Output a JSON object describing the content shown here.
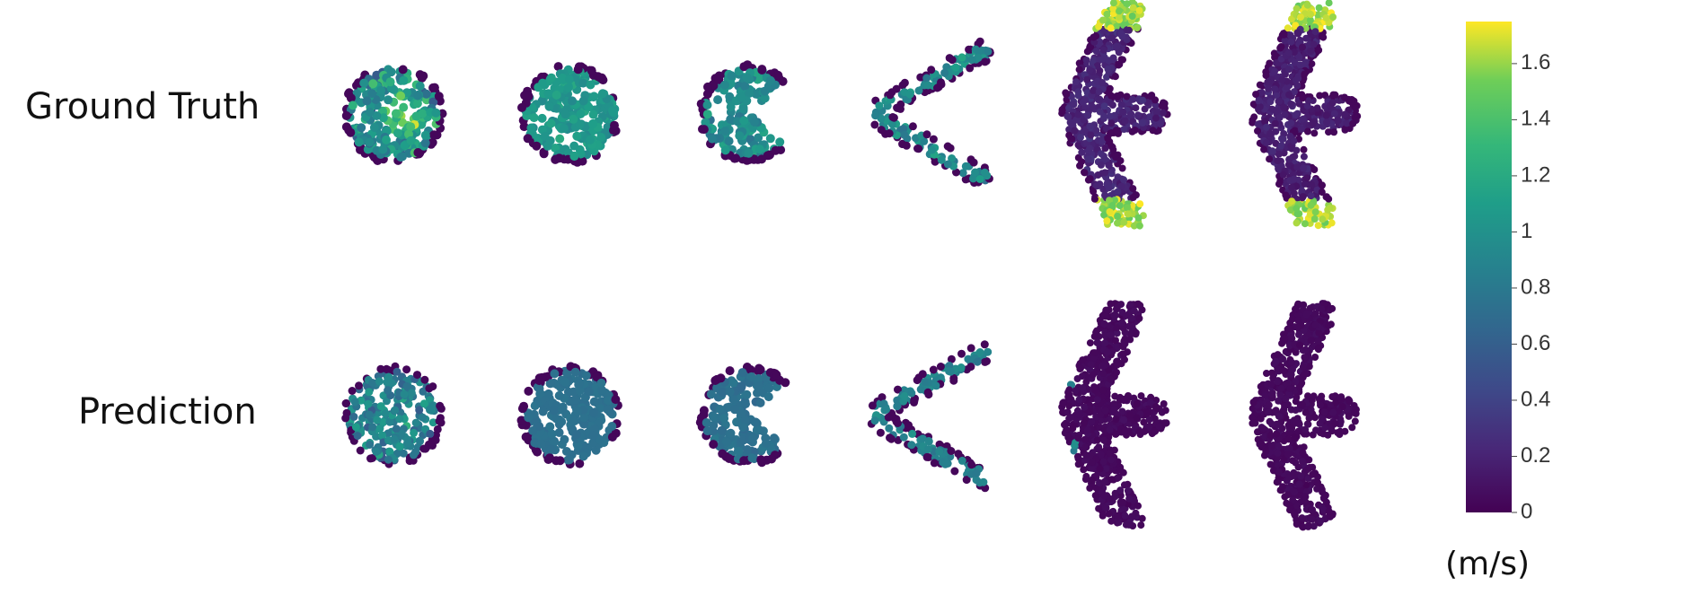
{
  "rows": [
    {
      "label": "Ground Truth"
    },
    {
      "label": "Prediction"
    }
  ],
  "colorbar": {
    "range": [
      0,
      1.75
    ],
    "ticks": [
      0,
      0.2,
      0.4,
      0.6,
      0.8,
      1,
      1.2,
      1.4,
      1.6
    ],
    "unit": "(m/s)"
  }
}
